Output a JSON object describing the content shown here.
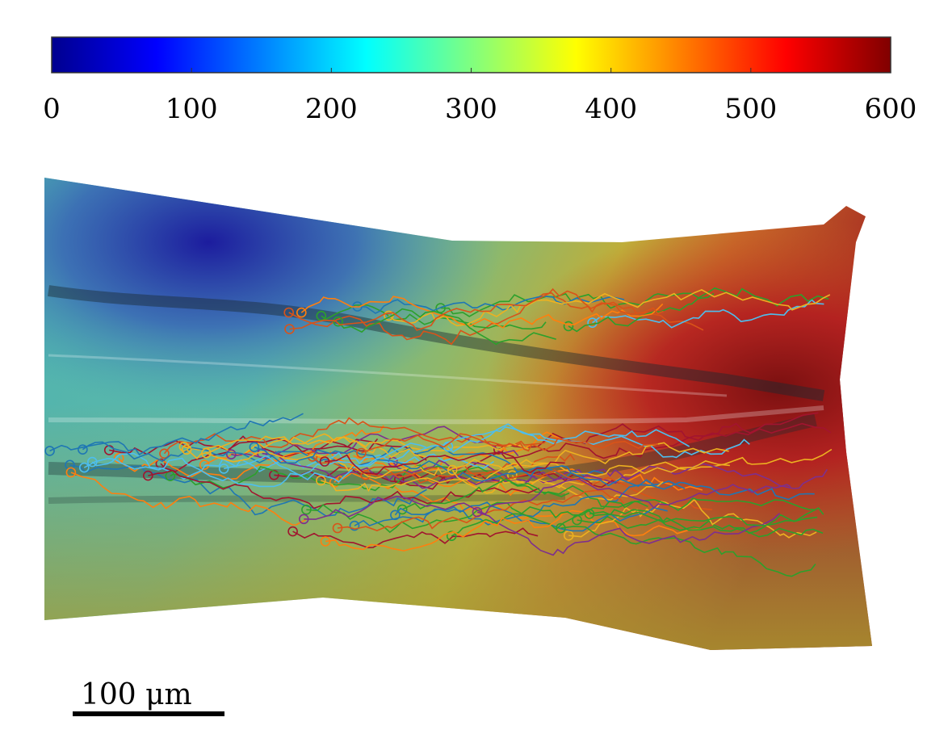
{
  "colorbar": {
    "min": 0,
    "max": 600,
    "colormap": "jet",
    "tick_labels": [
      "0",
      "100",
      "200",
      "300",
      "400",
      "500",
      "600"
    ],
    "tick_values": [
      0,
      100,
      200,
      300,
      400,
      500,
      600
    ]
  },
  "scale_bar": {
    "label": "100 μm",
    "length_um": 100
  },
  "tracks": {
    "colors": [
      "#1f77b4",
      "#ff7f0e",
      "#7e2f8e",
      "#2ca02c",
      "#4dbeee",
      "#d95319",
      "#edb120",
      "#a2142f"
    ]
  },
  "image": {
    "description_colors": {
      "low": "#1a1a9a",
      "mid": "#5fc4b0",
      "high": "#9a1a1a"
    }
  }
}
